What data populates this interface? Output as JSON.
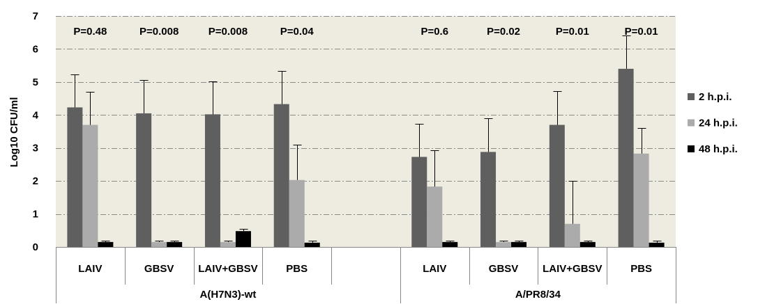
{
  "chart_data": {
    "type": "bar",
    "ylabel": "Log10 CFU/ml",
    "ylim": [
      0,
      7
    ],
    "yticks": [
      0,
      1,
      2,
      3,
      4,
      5,
      6,
      7
    ],
    "grid": true,
    "legend_position": "right",
    "background_color": "#EEECE1",
    "groups": [
      {
        "label": "A(H7N3)-wt",
        "categories": [
          "LAIV",
          "GBSV",
          "LAIV+GBSV",
          "PBS",
          ""
        ]
      },
      {
        "label": "A/PR8/34",
        "categories": [
          "LAIV",
          "GBSV",
          "LAIV+GBSV",
          "PBS"
        ]
      }
    ],
    "annotations": [
      "P=0.48",
      "P=0.008",
      "P=0.008",
      "P=0.04",
      null,
      "P=0.6",
      "P=0.02",
      "P=0.01",
      "P=0.01"
    ],
    "series": [
      {
        "name": "2 h.p.i.",
        "color": "#5F5F5F",
        "values": [
          4.23,
          4.05,
          4.02,
          4.33,
          null,
          2.73,
          2.88,
          3.7,
          5.4
        ],
        "error_plus": [
          1.0,
          1.0,
          1.0,
          1.0,
          null,
          1.0,
          1.02,
          1.02,
          1.0
        ]
      },
      {
        "name": "24 h.p.i.",
        "color": "#ABABAB",
        "values": [
          3.7,
          0.15,
          0.15,
          2.03,
          null,
          1.83,
          0.15,
          0.7,
          2.83
        ],
        "error_plus": [
          1.0,
          0.04,
          0.04,
          1.07,
          null,
          1.1,
          0.04,
          1.3,
          0.78
        ]
      },
      {
        "name": "48 h.p.i.",
        "color": "#000000",
        "values": [
          0.15,
          0.15,
          0.48,
          0.13,
          null,
          0.15,
          0.15,
          0.15,
          0.13
        ],
        "error_plus": [
          0.05,
          0.05,
          0.07,
          0.06,
          null,
          0.05,
          0.05,
          0.05,
          0.06
        ]
      }
    ]
  }
}
